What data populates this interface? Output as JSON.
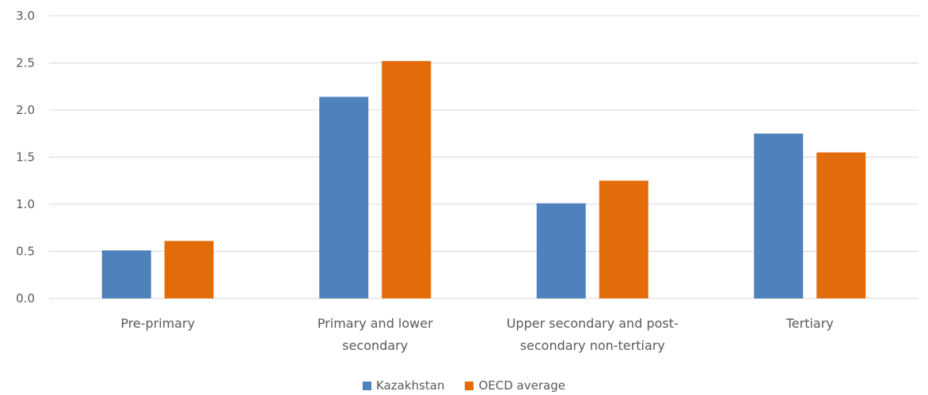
{
  "chart_data": {
    "type": "bar",
    "title": "",
    "xlabel": "",
    "ylabel": "",
    "ylim": [
      0,
      3.0
    ],
    "yticks": [
      "0.0",
      "0.5",
      "1.0",
      "1.5",
      "2.0",
      "2.5",
      "3.0"
    ],
    "grid": true,
    "legend_position": "bottom",
    "categories": [
      [
        "Pre-primary"
      ],
      [
        "Primary and lower",
        "secondary"
      ],
      [
        "Upper secondary and post-",
        "secondary non-tertiary"
      ],
      [
        "Tertiary"
      ]
    ],
    "series": [
      {
        "name": "Kazakhstan",
        "color": "#4f81bd",
        "values": [
          0.51,
          2.14,
          1.01,
          1.75
        ]
      },
      {
        "name": "OECD average",
        "color": "#e36c0a",
        "values": [
          0.61,
          2.52,
          1.25,
          1.55
        ]
      }
    ]
  }
}
